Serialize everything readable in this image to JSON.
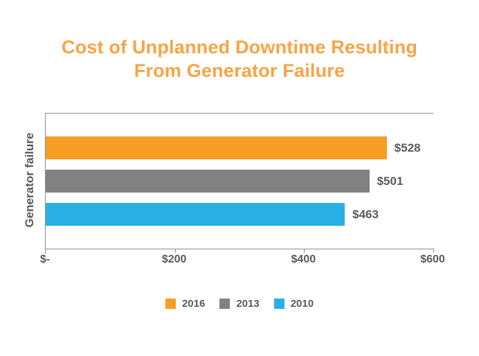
{
  "title": {
    "line1": "Cost of Unplanned Downtime Resulting",
    "line2": "From Generator Failure",
    "color": "#F9A344"
  },
  "chart_data": {
    "type": "bar",
    "orientation": "horizontal",
    "title": "Cost of Unplanned Downtime Resulting From Generator Failure",
    "category_axis_label": "Generator failure",
    "categories": [
      "Generator failure"
    ],
    "series": [
      {
        "name": "2016",
        "values": [
          528
        ],
        "value_label": "$528",
        "color": "#F89D23"
      },
      {
        "name": "2013",
        "values": [
          501
        ],
        "value_label": "$501",
        "color": "#818181"
      },
      {
        "name": "2010",
        "values": [
          463
        ],
        "value_label": "$463",
        "color": "#29B1E6"
      }
    ],
    "value_axis": {
      "min": 0,
      "max": 600,
      "tick_values": [
        0,
        200,
        400,
        600
      ],
      "tick_labels": [
        "$-",
        "$200",
        "$400",
        "$600"
      ]
    },
    "legend_position": "bottom",
    "grid": false,
    "text_color": "#58595B",
    "axis_line_color": "#8c8c8c"
  }
}
